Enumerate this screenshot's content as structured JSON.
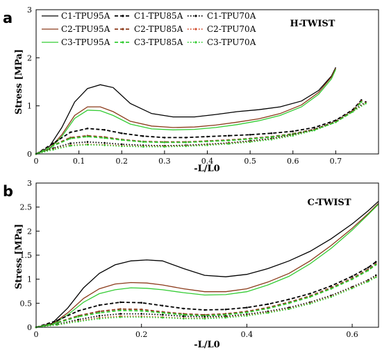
{
  "chart_data": [
    {
      "type": "line",
      "panel_letter": "a",
      "title": "H-TWIST",
      "xlabel": "-L/L0",
      "ylabel": "Stress [MPa]",
      "xlim": [
        0,
        0.8
      ],
      "ylim": [
        0,
        3
      ],
      "xticks": [
        "0",
        "0.1",
        "0.2",
        "0.3",
        "0.4",
        "0.5",
        "0.6",
        "0.7"
      ],
      "yticks": [
        "0",
        "1",
        "2",
        "3"
      ],
      "grid": false,
      "legend": "top-left",
      "series": [
        {
          "name": "C1-TPU95A",
          "color": "#000000",
          "style": "solid",
          "marker": false,
          "x": [
            0,
            0.03,
            0.06,
            0.09,
            0.12,
            0.15,
            0.18,
            0.22,
            0.27,
            0.32,
            0.37,
            0.42,
            0.47,
            0.52,
            0.57,
            0.62,
            0.66,
            0.69,
            0.7
          ],
          "y": [
            0,
            0.14,
            0.55,
            1.08,
            1.36,
            1.44,
            1.38,
            1.05,
            0.84,
            0.77,
            0.77,
            0.82,
            0.88,
            0.92,
            0.98,
            1.1,
            1.32,
            1.62,
            1.8
          ]
        },
        {
          "name": "C2-TPU95A",
          "color": "#8b3a1a",
          "style": "solid",
          "marker": false,
          "x": [
            0,
            0.03,
            0.06,
            0.09,
            0.12,
            0.15,
            0.18,
            0.22,
            0.27,
            0.32,
            0.37,
            0.42,
            0.47,
            0.52,
            0.57,
            0.62,
            0.66,
            0.69,
            0.7
          ],
          "y": [
            0,
            0.1,
            0.4,
            0.8,
            0.98,
            0.98,
            0.88,
            0.68,
            0.58,
            0.55,
            0.56,
            0.6,
            0.66,
            0.73,
            0.84,
            1.02,
            1.28,
            1.6,
            1.78
          ]
        },
        {
          "name": "C3-TPU95A",
          "color": "#33cc33",
          "style": "solid",
          "marker": false,
          "x": [
            0,
            0.03,
            0.06,
            0.09,
            0.12,
            0.15,
            0.18,
            0.22,
            0.27,
            0.32,
            0.37,
            0.42,
            0.47,
            0.52,
            0.57,
            0.62,
            0.66,
            0.69,
            0.7
          ],
          "y": [
            0,
            0.09,
            0.36,
            0.74,
            0.91,
            0.9,
            0.8,
            0.62,
            0.52,
            0.5,
            0.51,
            0.55,
            0.61,
            0.69,
            0.8,
            0.98,
            1.24,
            1.56,
            1.76
          ]
        },
        {
          "name": "C1-TPU85A",
          "color": "#000000",
          "style": "dashed",
          "marker": true,
          "x": [
            0,
            0.04,
            0.08,
            0.12,
            0.16,
            0.2,
            0.25,
            0.3,
            0.35,
            0.4,
            0.45,
            0.5,
            0.55,
            0.6,
            0.65,
            0.7,
            0.74,
            0.76
          ],
          "y": [
            0,
            0.22,
            0.45,
            0.53,
            0.5,
            0.43,
            0.37,
            0.34,
            0.34,
            0.36,
            0.38,
            0.4,
            0.43,
            0.47,
            0.55,
            0.7,
            0.92,
            1.12
          ]
        },
        {
          "name": "C2-TPU85A",
          "color": "#8b3a1a",
          "style": "dashed",
          "marker": true,
          "x": [
            0,
            0.04,
            0.08,
            0.12,
            0.16,
            0.2,
            0.25,
            0.3,
            0.35,
            0.4,
            0.45,
            0.5,
            0.55,
            0.6,
            0.65,
            0.7,
            0.74,
            0.76
          ],
          "y": [
            0,
            0.18,
            0.34,
            0.38,
            0.35,
            0.3,
            0.26,
            0.25,
            0.25,
            0.27,
            0.29,
            0.32,
            0.36,
            0.42,
            0.51,
            0.67,
            0.9,
            1.1
          ]
        },
        {
          "name": "C3-TPU85A",
          "color": "#33cc33",
          "style": "dashed",
          "marker": true,
          "x": [
            0,
            0.04,
            0.08,
            0.12,
            0.16,
            0.2,
            0.25,
            0.3,
            0.35,
            0.4,
            0.45,
            0.5,
            0.55,
            0.6,
            0.65,
            0.7,
            0.74,
            0.76
          ],
          "y": [
            0,
            0.17,
            0.32,
            0.36,
            0.33,
            0.29,
            0.25,
            0.24,
            0.24,
            0.26,
            0.28,
            0.31,
            0.35,
            0.41,
            0.5,
            0.66,
            0.88,
            1.08
          ]
        },
        {
          "name": "C1-TPU70A",
          "color": "#000000",
          "style": "dotted",
          "marker": true,
          "x": [
            0,
            0.04,
            0.08,
            0.12,
            0.16,
            0.2,
            0.25,
            0.3,
            0.35,
            0.4,
            0.45,
            0.5,
            0.55,
            0.6,
            0.65,
            0.7,
            0.74,
            0.77
          ],
          "y": [
            0,
            0.12,
            0.22,
            0.25,
            0.23,
            0.2,
            0.18,
            0.17,
            0.18,
            0.2,
            0.23,
            0.27,
            0.32,
            0.4,
            0.51,
            0.68,
            0.9,
            1.08
          ]
        },
        {
          "name": "C2-TPU70A",
          "color": "#d04a2a",
          "style": "dotted",
          "marker": true,
          "x": [
            0,
            0.04,
            0.08,
            0.12,
            0.16,
            0.2,
            0.25,
            0.3,
            0.35,
            0.4,
            0.45,
            0.5,
            0.55,
            0.6,
            0.65,
            0.7,
            0.74,
            0.77
          ],
          "y": [
            0,
            0.1,
            0.18,
            0.2,
            0.19,
            0.17,
            0.16,
            0.16,
            0.17,
            0.19,
            0.22,
            0.26,
            0.31,
            0.39,
            0.5,
            0.67,
            0.89,
            1.06
          ]
        },
        {
          "name": "C3-TPU70A",
          "color": "#33cc33",
          "style": "dotted",
          "marker": true,
          "x": [
            0,
            0.04,
            0.08,
            0.12,
            0.16,
            0.2,
            0.25,
            0.3,
            0.35,
            0.4,
            0.45,
            0.5,
            0.55,
            0.6,
            0.65,
            0.7,
            0.74,
            0.77
          ],
          "y": [
            0,
            0.09,
            0.17,
            0.19,
            0.18,
            0.16,
            0.15,
            0.15,
            0.16,
            0.18,
            0.21,
            0.25,
            0.3,
            0.38,
            0.49,
            0.66,
            0.88,
            1.05
          ]
        }
      ]
    },
    {
      "type": "line",
      "panel_letter": "b",
      "title": "C-TWIST",
      "xlabel": "-L/L0",
      "ylabel": "Stress [MPa]",
      "xlim": [
        0,
        0.65
      ],
      "ylim": [
        0,
        3
      ],
      "xticks": [
        "0",
        "0.2",
        "0.4",
        "0.6"
      ],
      "yticks": [
        "0",
        "0.5",
        "1",
        "1.5",
        "2",
        "2.5",
        "3"
      ],
      "grid": false,
      "legend": "none",
      "series": [
        {
          "name": "C1-TPU95A",
          "color": "#000000",
          "style": "solid",
          "marker": false,
          "x": [
            0,
            0.03,
            0.06,
            0.09,
            0.12,
            0.15,
            0.18,
            0.21,
            0.24,
            0.28,
            0.32,
            0.36,
            0.4,
            0.44,
            0.48,
            0.52,
            0.56,
            0.6,
            0.63,
            0.65
          ],
          "y": [
            0,
            0.08,
            0.4,
            0.82,
            1.12,
            1.3,
            1.38,
            1.4,
            1.38,
            1.22,
            1.08,
            1.05,
            1.1,
            1.22,
            1.38,
            1.58,
            1.84,
            2.15,
            2.42,
            2.62
          ]
        },
        {
          "name": "C2-TPU95A",
          "color": "#8b3a1a",
          "style": "solid",
          "marker": false,
          "x": [
            0,
            0.03,
            0.06,
            0.09,
            0.12,
            0.15,
            0.18,
            0.21,
            0.24,
            0.28,
            0.32,
            0.36,
            0.4,
            0.44,
            0.48,
            0.52,
            0.56,
            0.6,
            0.63,
            0.65
          ],
          "y": [
            0,
            0.06,
            0.3,
            0.6,
            0.8,
            0.9,
            0.93,
            0.92,
            0.88,
            0.8,
            0.74,
            0.74,
            0.8,
            0.94,
            1.12,
            1.38,
            1.7,
            2.06,
            2.36,
            2.58
          ]
        },
        {
          "name": "C3-TPU95A",
          "color": "#33cc33",
          "style": "solid",
          "marker": false,
          "x": [
            0,
            0.03,
            0.06,
            0.09,
            0.12,
            0.15,
            0.18,
            0.21,
            0.24,
            0.28,
            0.32,
            0.36,
            0.4,
            0.44,
            0.48,
            0.52,
            0.56,
            0.6,
            0.63,
            0.65
          ],
          "y": [
            0,
            0.05,
            0.26,
            0.52,
            0.7,
            0.78,
            0.82,
            0.81,
            0.78,
            0.72,
            0.67,
            0.68,
            0.74,
            0.88,
            1.06,
            1.32,
            1.64,
            2.02,
            2.34,
            2.56
          ]
        },
        {
          "name": "C1-TPU85A",
          "color": "#000000",
          "style": "dashed",
          "marker": true,
          "x": [
            0,
            0.04,
            0.08,
            0.12,
            0.16,
            0.2,
            0.24,
            0.28,
            0.32,
            0.36,
            0.4,
            0.44,
            0.48,
            0.52,
            0.56,
            0.6,
            0.63,
            0.645
          ],
          "y": [
            0,
            0.14,
            0.34,
            0.46,
            0.52,
            0.51,
            0.45,
            0.39,
            0.36,
            0.37,
            0.41,
            0.48,
            0.58,
            0.7,
            0.86,
            1.06,
            1.24,
            1.36
          ]
        },
        {
          "name": "C2-TPU85A",
          "color": "#8b3a1a",
          "style": "dashed",
          "marker": true,
          "x": [
            0,
            0.04,
            0.08,
            0.12,
            0.16,
            0.2,
            0.24,
            0.28,
            0.32,
            0.36,
            0.4,
            0.44,
            0.48,
            0.52,
            0.56,
            0.6,
            0.63,
            0.645
          ],
          "y": [
            0,
            0.1,
            0.24,
            0.33,
            0.38,
            0.37,
            0.32,
            0.28,
            0.26,
            0.28,
            0.33,
            0.41,
            0.52,
            0.65,
            0.82,
            1.02,
            1.2,
            1.32
          ]
        },
        {
          "name": "C3-TPU85A",
          "color": "#33cc33",
          "style": "dashed",
          "marker": true,
          "x": [
            0,
            0.04,
            0.08,
            0.12,
            0.16,
            0.2,
            0.24,
            0.28,
            0.32,
            0.36,
            0.4,
            0.44,
            0.48,
            0.52,
            0.56,
            0.6,
            0.63,
            0.645
          ],
          "y": [
            0,
            0.09,
            0.22,
            0.3,
            0.35,
            0.34,
            0.3,
            0.26,
            0.24,
            0.26,
            0.31,
            0.39,
            0.5,
            0.63,
            0.8,
            1.0,
            1.18,
            1.3
          ]
        },
        {
          "name": "C1-TPU70A",
          "color": "#000000",
          "style": "dotted",
          "marker": true,
          "x": [
            0,
            0.04,
            0.08,
            0.12,
            0.16,
            0.2,
            0.24,
            0.28,
            0.32,
            0.36,
            0.4,
            0.44,
            0.48,
            0.52,
            0.56,
            0.6,
            0.63,
            0.645
          ],
          "y": [
            0,
            0.06,
            0.16,
            0.24,
            0.28,
            0.28,
            0.26,
            0.23,
            0.22,
            0.23,
            0.27,
            0.33,
            0.41,
            0.52,
            0.66,
            0.84,
            0.98,
            1.08
          ]
        },
        {
          "name": "C2-TPU70A",
          "color": "#d04a2a",
          "style": "dotted",
          "marker": true,
          "x": [
            0,
            0.04,
            0.08,
            0.12,
            0.16,
            0.2,
            0.24,
            0.28,
            0.32,
            0.36,
            0.4,
            0.44,
            0.48,
            0.52,
            0.56,
            0.6,
            0.63,
            0.645
          ],
          "y": [
            0,
            0.05,
            0.13,
            0.2,
            0.23,
            0.23,
            0.21,
            0.19,
            0.19,
            0.21,
            0.25,
            0.31,
            0.39,
            0.5,
            0.64,
            0.82,
            0.96,
            1.05
          ]
        },
        {
          "name": "C3-TPU70A",
          "color": "#33cc33",
          "style": "dotted",
          "marker": true,
          "x": [
            0,
            0.04,
            0.08,
            0.12,
            0.16,
            0.2,
            0.24,
            0.28,
            0.32,
            0.36,
            0.4,
            0.44,
            0.48,
            0.52,
            0.56,
            0.6,
            0.63,
            0.645
          ],
          "y": [
            0,
            0.05,
            0.12,
            0.18,
            0.21,
            0.21,
            0.2,
            0.18,
            0.18,
            0.2,
            0.24,
            0.3,
            0.38,
            0.49,
            0.63,
            0.81,
            0.95,
            1.04
          ]
        }
      ]
    }
  ]
}
